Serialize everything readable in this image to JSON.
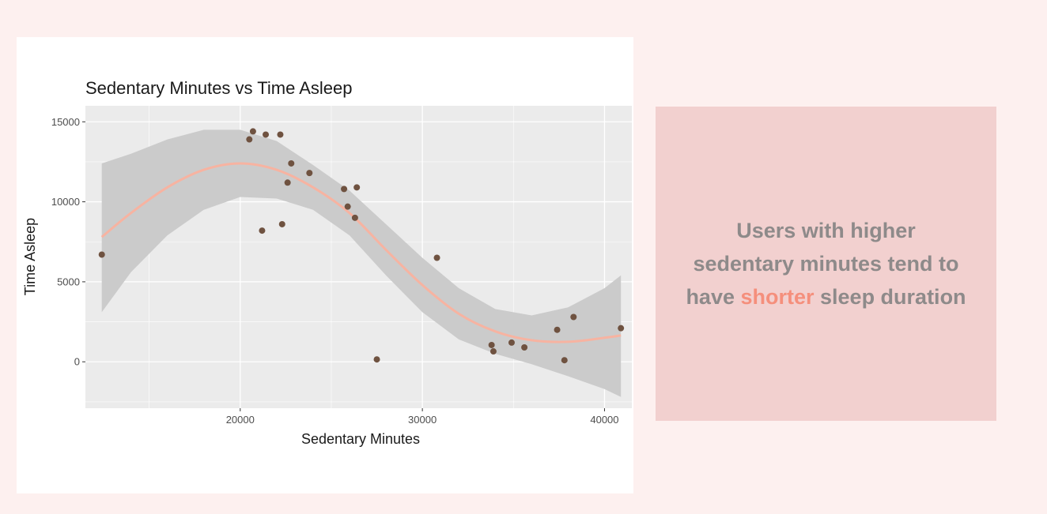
{
  "chart_data": {
    "type": "scatter",
    "title": "Sedentary Minutes vs Time Asleep",
    "xlabel": "Sedentary Minutes",
    "ylabel": "Time Asleep",
    "xlim": [
      11500,
      41500
    ],
    "ylim": [
      -2900,
      16000
    ],
    "xticks": [
      20000,
      30000,
      40000
    ],
    "yticks": [
      0,
      5000,
      10000,
      15000
    ],
    "xtick_labels": [
      "20000",
      "30000",
      "40000"
    ],
    "ytick_labels": [
      "0",
      "5000",
      "10000",
      "15000"
    ],
    "grid": true,
    "points": [
      {
        "x": 12400,
        "y": 6700
      },
      {
        "x": 20500,
        "y": 13900
      },
      {
        "x": 20700,
        "y": 14400
      },
      {
        "x": 21200,
        "y": 8200
      },
      {
        "x": 21400,
        "y": 14200
      },
      {
        "x": 22200,
        "y": 14200
      },
      {
        "x": 22300,
        "y": 8600
      },
      {
        "x": 22600,
        "y": 11200
      },
      {
        "x": 22800,
        "y": 12400
      },
      {
        "x": 23800,
        "y": 11800
      },
      {
        "x": 25700,
        "y": 10800
      },
      {
        "x": 25900,
        "y": 9700
      },
      {
        "x": 26300,
        "y": 9000
      },
      {
        "x": 26400,
        "y": 10900
      },
      {
        "x": 27500,
        "y": 150
      },
      {
        "x": 30800,
        "y": 6500
      },
      {
        "x": 33800,
        "y": 1050
      },
      {
        "x": 33900,
        "y": 650
      },
      {
        "x": 34900,
        "y": 1200
      },
      {
        "x": 35600,
        "y": 900
      },
      {
        "x": 37400,
        "y": 2000
      },
      {
        "x": 37800,
        "y": 100
      },
      {
        "x": 38300,
        "y": 2800
      },
      {
        "x": 40900,
        "y": 2100
      }
    ],
    "smooth_line": [
      {
        "x": 12400,
        "y": 7800
      },
      {
        "x": 14000,
        "y": 9300
      },
      {
        "x": 16000,
        "y": 10900
      },
      {
        "x": 18000,
        "y": 12000
      },
      {
        "x": 20000,
        "y": 12400
      },
      {
        "x": 22000,
        "y": 12000
      },
      {
        "x": 24000,
        "y": 10900
      },
      {
        "x": 26000,
        "y": 9300
      },
      {
        "x": 28000,
        "y": 7000
      },
      {
        "x": 30000,
        "y": 4800
      },
      {
        "x": 32000,
        "y": 3000
      },
      {
        "x": 34000,
        "y": 1900
      },
      {
        "x": 36000,
        "y": 1350
      },
      {
        "x": 38000,
        "y": 1250
      },
      {
        "x": 40000,
        "y": 1500
      },
      {
        "x": 40900,
        "y": 1650
      }
    ],
    "confidence_band": {
      "x": [
        12400,
        14000,
        16000,
        18000,
        20000,
        22000,
        24000,
        26000,
        28000,
        30000,
        32000,
        34000,
        36000,
        38000,
        40000,
        40900
      ],
      "upper": [
        12400,
        13000,
        13900,
        14500,
        14500,
        13800,
        12300,
        10700,
        8600,
        6500,
        4600,
        3300,
        2900,
        3400,
        4600,
        5400
      ],
      "lower": [
        3100,
        5600,
        7900,
        9500,
        10300,
        10200,
        9500,
        7900,
        5400,
        3100,
        1400,
        500,
        -150,
        -900,
        -1700,
        -2200
      ]
    },
    "colors": {
      "panel_bg": "#ebebeb",
      "grid": "#ffffff",
      "band": "#cbcbcb",
      "line": "#f7b3a1",
      "point": "#6f5240"
    }
  },
  "callout": {
    "text_before": "Users with higher sedentary minutes tend to have ",
    "highlight": "shorter",
    "text_after": " sleep duration",
    "highlight_color": "#f58f7c"
  }
}
